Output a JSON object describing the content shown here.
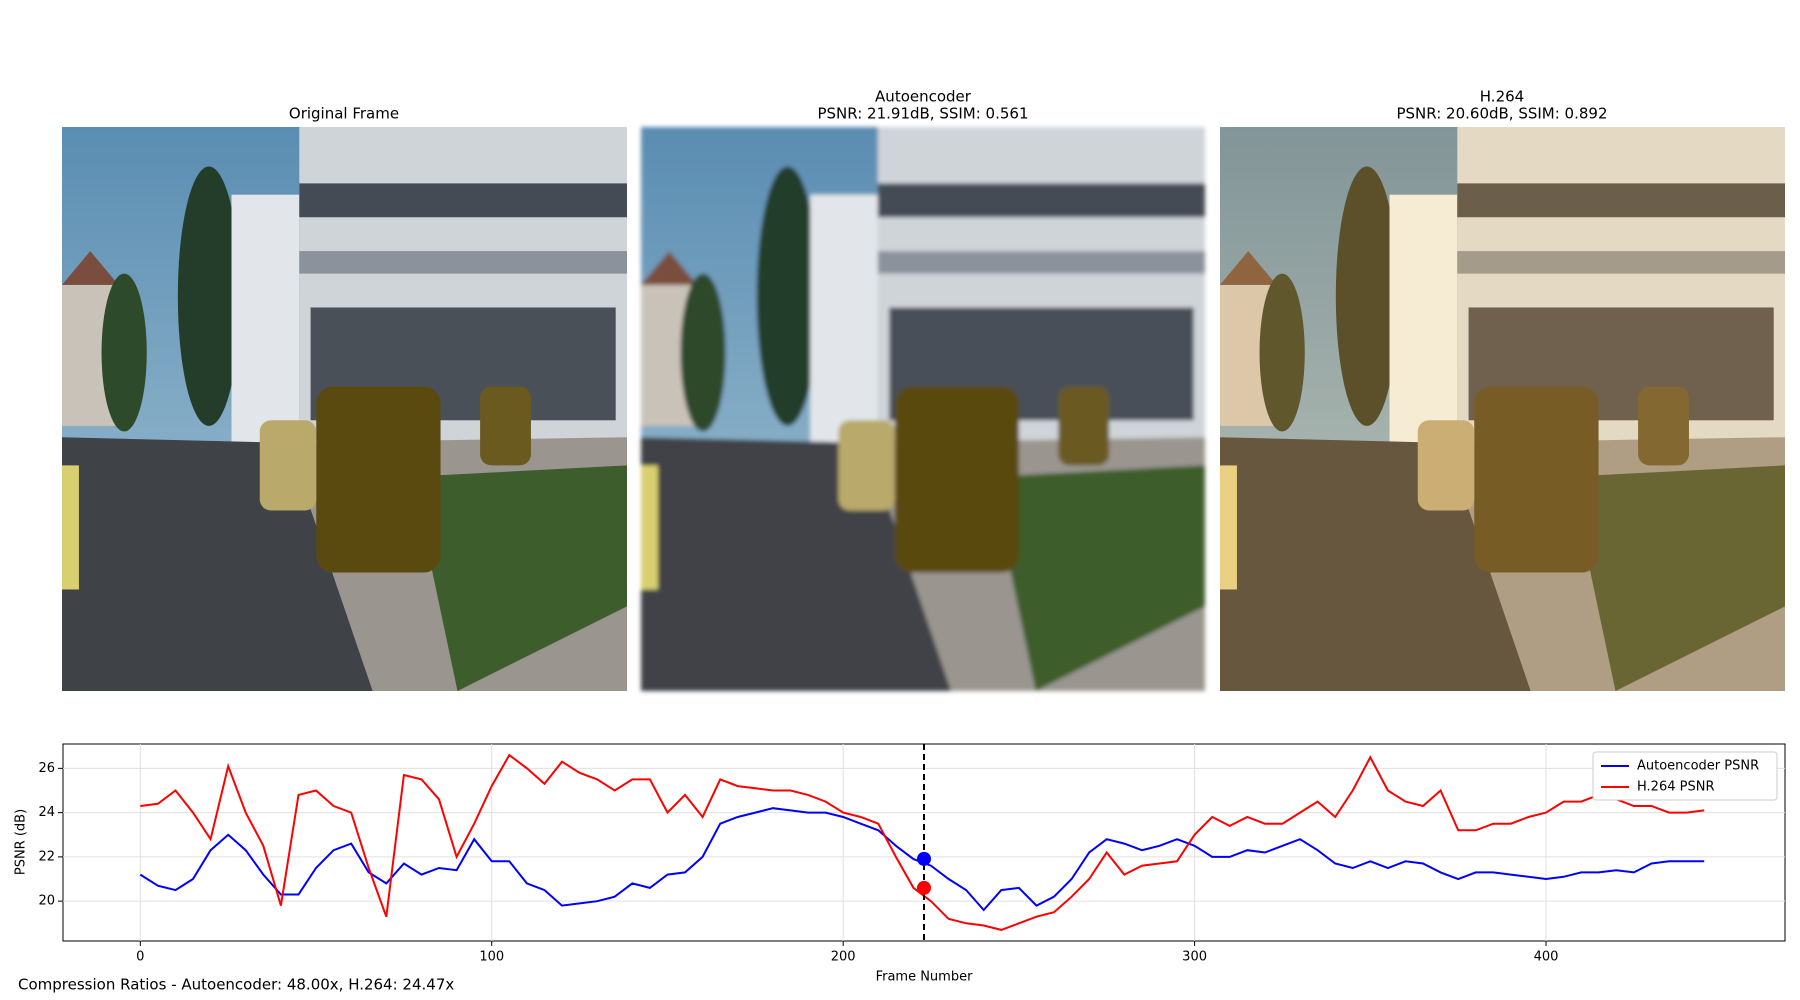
{
  "panels": [
    {
      "title_lines": [
        "Original Frame"
      ]
    },
    {
      "title_lines": [
        "Autoencoder",
        "PSNR: 21.91dB, SSIM: 0.561"
      ]
    },
    {
      "title_lines": [
        "H.264",
        "PSNR: 20.60dB, SSIM: 0.892"
      ]
    }
  ],
  "footer": "Compression Ratios - Autoencoder: 48.00x, H.264: 24.47x",
  "chart_data": {
    "type": "line",
    "xlabel": "Frame Number",
    "ylabel": "PSNR (dB)",
    "x": [
      0,
      5,
      10,
      15,
      20,
      25,
      30,
      35,
      40,
      45,
      50,
      55,
      60,
      65,
      70,
      75,
      80,
      85,
      90,
      95,
      100,
      105,
      110,
      115,
      120,
      125,
      130,
      135,
      140,
      145,
      150,
      155,
      160,
      165,
      170,
      175,
      180,
      185,
      190,
      195,
      200,
      205,
      210,
      215,
      220,
      225,
      230,
      235,
      240,
      245,
      250,
      255,
      260,
      265,
      270,
      275,
      280,
      285,
      290,
      295,
      300,
      305,
      310,
      315,
      320,
      325,
      330,
      335,
      340,
      345,
      350,
      355,
      360,
      365,
      370,
      375,
      380,
      385,
      390,
      395,
      400,
      405,
      410,
      415,
      420,
      425,
      430,
      435,
      440,
      445
    ],
    "series": [
      {
        "name": "Autoencoder PSNR",
        "color": "#0000ff",
        "values": [
          21.2,
          20.7,
          20.5,
          21.0,
          22.3,
          23.0,
          22.3,
          21.2,
          20.3,
          20.3,
          21.5,
          22.3,
          22.6,
          21.3,
          20.8,
          21.7,
          21.2,
          21.5,
          21.4,
          22.8,
          21.8,
          21.8,
          20.8,
          20.5,
          19.8,
          19.9,
          20.0,
          20.2,
          20.8,
          20.6,
          21.2,
          21.3,
          22.0,
          23.5,
          23.8,
          24.0,
          24.2,
          24.1,
          24.0,
          24.0,
          23.8,
          23.5,
          23.2,
          22.5,
          21.9,
          21.6,
          21.0,
          20.5,
          19.6,
          20.5,
          20.6,
          19.8,
          20.2,
          21.0,
          22.2,
          22.8,
          22.6,
          22.3,
          22.5,
          22.8,
          22.5,
          22.0,
          22.0,
          22.3,
          22.2,
          22.5,
          22.8,
          22.3,
          21.7,
          21.5,
          21.8,
          21.5,
          21.8,
          21.7,
          21.3,
          21.0,
          21.3,
          21.3,
          21.2,
          21.1,
          21.0,
          21.1,
          21.3,
          21.3,
          21.4,
          21.3,
          21.7,
          21.8,
          21.8,
          21.8
        ]
      },
      {
        "name": "H.264 PSNR",
        "color": "#ff0000",
        "values": [
          24.3,
          24.4,
          25.0,
          24.0,
          22.8,
          26.1,
          24.0,
          22.5,
          19.8,
          24.8,
          25.0,
          24.3,
          24.0,
          21.5,
          19.3,
          25.7,
          25.5,
          24.6,
          22.0,
          23.5,
          25.2,
          26.6,
          26.0,
          25.3,
          26.3,
          25.8,
          25.5,
          25.0,
          25.5,
          25.5,
          24.0,
          24.8,
          23.8,
          25.5,
          25.2,
          25.1,
          25.0,
          25.0,
          24.8,
          24.5,
          24.0,
          23.8,
          23.5,
          22.0,
          20.6,
          20.0,
          19.2,
          19.0,
          18.9,
          18.7,
          19.0,
          19.3,
          19.5,
          20.2,
          21.0,
          22.2,
          21.2,
          21.6,
          21.7,
          21.8,
          23.0,
          23.8,
          23.4,
          23.8,
          23.5,
          23.5,
          24.0,
          24.5,
          23.8,
          25.0,
          26.5,
          25.0,
          24.5,
          24.3,
          25.0,
          23.2,
          23.2,
          23.5,
          23.5,
          23.8,
          24.0,
          24.5,
          24.5,
          24.8,
          24.6,
          24.3,
          24.3,
          24.0,
          24.0,
          24.1
        ]
      }
    ],
    "current_frame": {
      "x": 223,
      "values": [
        21.91,
        20.6
      ]
    },
    "xlim": [
      -22,
      468
    ],
    "ylim": [
      18.2,
      27.1
    ],
    "xticks": [
      0,
      100,
      200,
      300,
      400
    ],
    "yticks": [
      20,
      22,
      24,
      26
    ],
    "grid": true,
    "legend": "upper right"
  }
}
